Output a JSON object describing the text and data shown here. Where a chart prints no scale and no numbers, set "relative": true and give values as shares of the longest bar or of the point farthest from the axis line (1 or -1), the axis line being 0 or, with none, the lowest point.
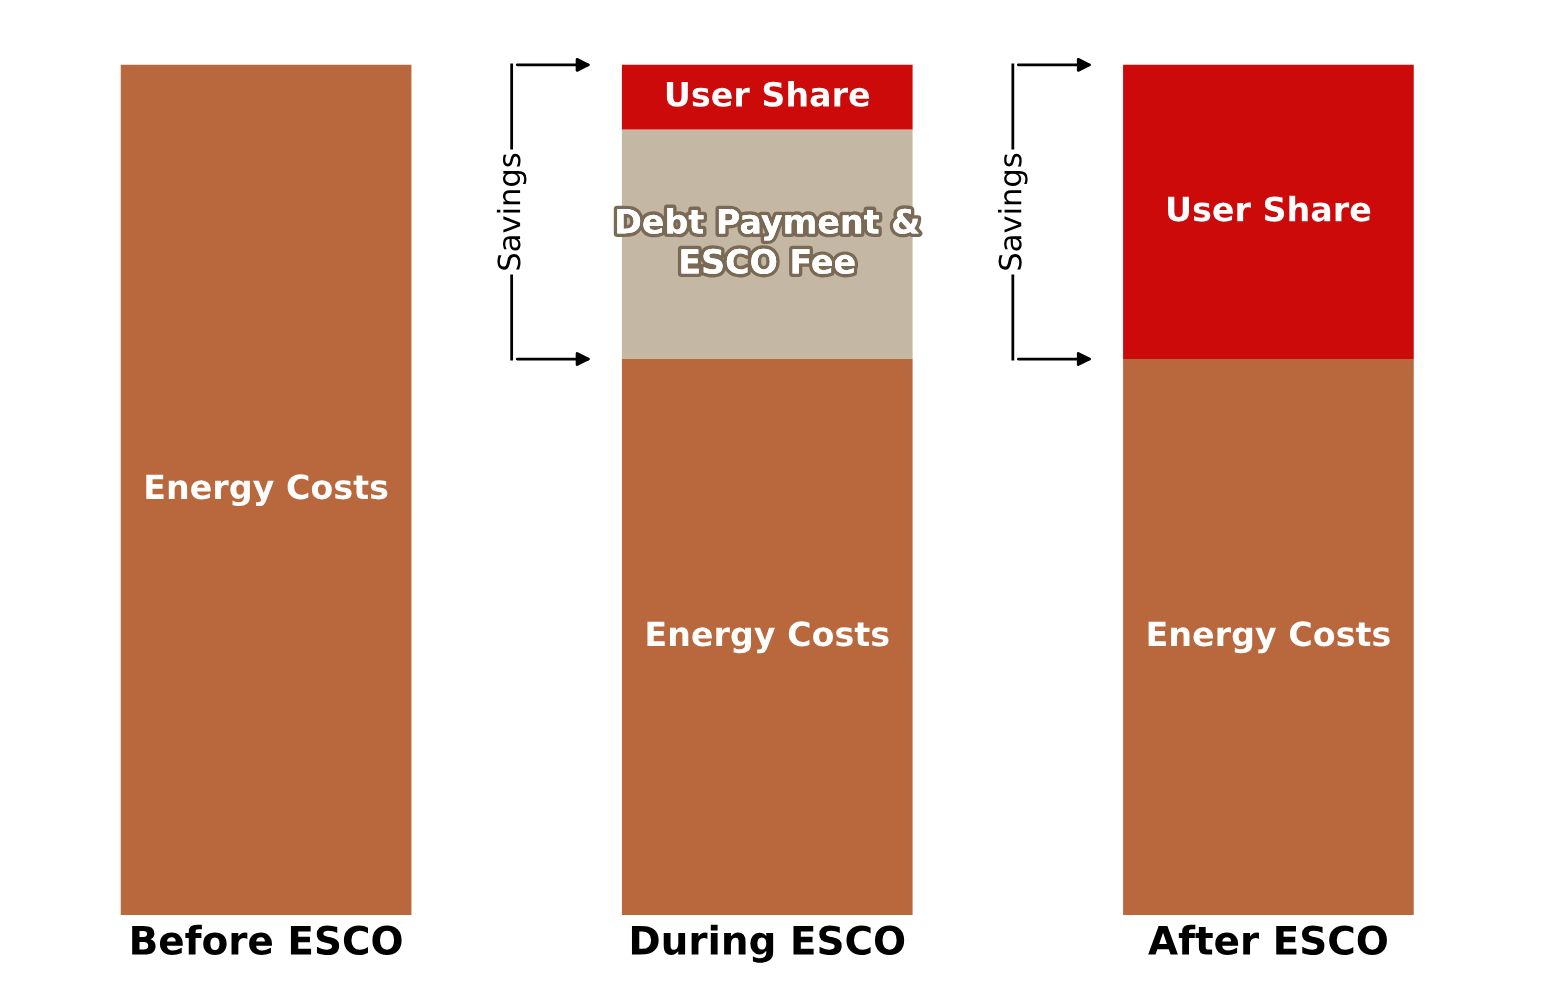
{
  "chart_data": {
    "type": "bar",
    "stacked": true,
    "relative": true,
    "categories": [
      "Before ESCO",
      "During ESCO",
      "After ESCO"
    ],
    "series": [
      {
        "name": "Energy Costs",
        "color": "#b8683c",
        "values": [
          1,
          0.654,
          0.654
        ]
      },
      {
        "name": "Debt Payment & ESCO Fee",
        "color": "#c4b8a4",
        "values": [
          null,
          0.27,
          null
        ]
      },
      {
        "name": "User Share",
        "color": "#cc0a0a",
        "values": [
          null,
          0.076,
          0.346
        ]
      }
    ],
    "annotations": [
      "Savings",
      "Savings"
    ],
    "grid": false,
    "legend": false
  }
}
